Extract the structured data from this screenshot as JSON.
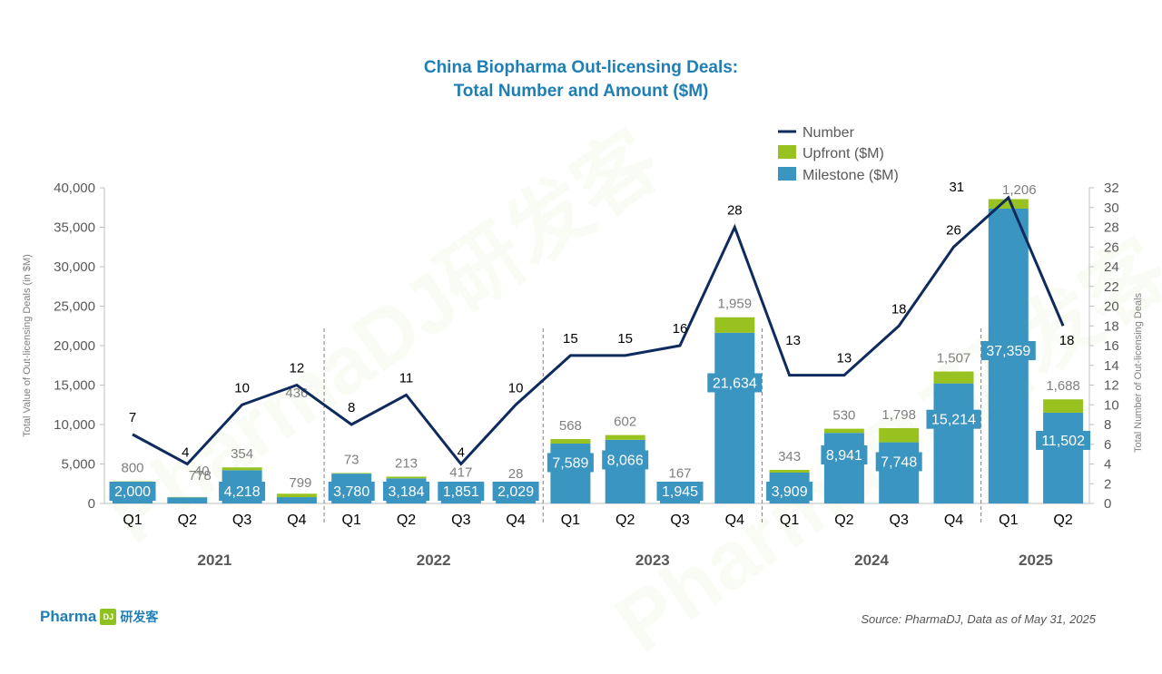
{
  "title_line1": "China Biopharma Out-licensing Deals:",
  "title_line2": "Total Number and Amount ($M)",
  "source": "Source: PharmaDJ, Data as of May 31, 2025",
  "brand": {
    "name": "Pharma",
    "icon_letter": "DJ",
    "cn": "研发客"
  },
  "watermark": "PharmaDJ研发客",
  "colors": {
    "milestone": "#3b95c1",
    "upfront": "#98c21f",
    "line": "#0f2a5c",
    "title": "#1f7fb5",
    "axis_text": "#595959"
  },
  "chart_data": {
    "type": "bar",
    "title": "China Biopharma Out-licensing Deals: Total Number and Amount ($M)",
    "ylabel": "Total Value of Out-licensing Deals (in $M)",
    "y2label": "Total Number of Out-licensing Deals",
    "ylim": [
      0,
      40000
    ],
    "yticks": [
      "0",
      "5,000",
      "10,000",
      "15,000",
      "20,000",
      "25,000",
      "30,000",
      "35,000",
      "40,000"
    ],
    "y2lim": [
      0,
      32
    ],
    "y2ticks": [
      "0",
      "2",
      "4",
      "6",
      "8",
      "10",
      "12",
      "14",
      "16",
      "18",
      "20",
      "22",
      "24",
      "26",
      "28",
      "30",
      "32"
    ],
    "categories": [
      "Q1",
      "Q2",
      "Q3",
      "Q4",
      "Q1",
      "Q2",
      "Q3",
      "Q4",
      "Q1",
      "Q2",
      "Q3",
      "Q4",
      "Q1",
      "Q2",
      "Q3",
      "Q4",
      "Q1",
      "Q2"
    ],
    "years": [
      {
        "label": "2021",
        "start": 0,
        "end": 3
      },
      {
        "label": "2022",
        "start": 4,
        "end": 7
      },
      {
        "label": "2023",
        "start": 8,
        "end": 11
      },
      {
        "label": "2024",
        "start": 12,
        "end": 15
      },
      {
        "label": "2025",
        "start": 16,
        "end": 17
      }
    ],
    "series": [
      {
        "name": "Milestone ($M)",
        "kind": "bar",
        "values": [
          2000,
          778,
          4218,
          799,
          3780,
          3184,
          1851,
          2029,
          7589,
          8066,
          1945,
          21634,
          3909,
          8941,
          7748,
          15214,
          37359,
          11502
        ]
      },
      {
        "name": "Upfront ($M)",
        "kind": "bar",
        "values": [
          800,
          40,
          354,
          436,
          73,
          213,
          417,
          28,
          568,
          602,
          167,
          1959,
          343,
          530,
          1798,
          1507,
          1206,
          1688
        ]
      },
      {
        "name": "Number",
        "kind": "line",
        "axis": "right",
        "values": [
          7,
          4,
          10,
          12,
          8,
          11,
          4,
          10,
          15,
          15,
          16,
          28,
          13,
          13,
          18,
          26,
          31,
          18
        ]
      }
    ],
    "milestone_labels": [
      "2,000",
      "778",
      "4,218",
      "799",
      "3,780",
      "3,184",
      "1,851",
      "2,029",
      "7,589",
      "8,066",
      "1,945",
      "21,634",
      "3,909",
      "8,941",
      "7,748",
      "15,214",
      "37,359",
      "11,502"
    ],
    "upfront_labels": [
      "800",
      "40",
      "354",
      "436",
      "73",
      "213",
      "417",
      "28",
      "568",
      "602",
      "167",
      "1,959",
      "343",
      "530",
      "1,798",
      "1,507",
      "1,206",
      "1,688"
    ],
    "legend": [
      "Number",
      "Upfront ($M)",
      "Milestone ($M)"
    ],
    "legend_position": "top-center"
  }
}
